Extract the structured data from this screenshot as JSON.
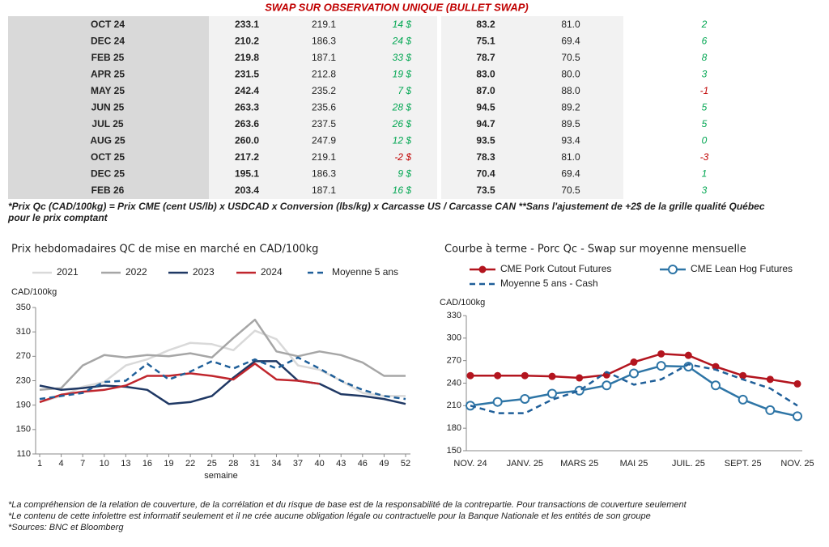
{
  "table": {
    "title": "SWAP SUR OBSERVATION UNIQUE (BULLET SWAP)",
    "rows": [
      [
        "OCT 24",
        "233.1",
        "219.1",
        "14 $",
        "83.2",
        "81.0",
        "2"
      ],
      [
        "DEC 24",
        "210.2",
        "186.3",
        "24 $",
        "75.1",
        "69.4",
        "6"
      ],
      [
        "FEB 25",
        "219.8",
        "187.1",
        "33 $",
        "78.7",
        "70.5",
        "8"
      ],
      [
        "APR 25",
        "231.5",
        "212.8",
        "19 $",
        "83.0",
        "80.0",
        "3"
      ],
      [
        "MAY 25",
        "242.4",
        "235.2",
        "7 $",
        "87.0",
        "88.0",
        "-1"
      ],
      [
        "JUN 25",
        "263.3",
        "235.6",
        "28 $",
        "94.5",
        "89.2",
        "5"
      ],
      [
        "JUL 25",
        "263.6",
        "237.5",
        "26 $",
        "94.7",
        "89.5",
        "5"
      ],
      [
        "AUG 25",
        "260.0",
        "247.9",
        "12 $",
        "93.5",
        "93.4",
        "0"
      ],
      [
        "OCT 25",
        "217.2",
        "219.1",
        "-2 $",
        "78.3",
        "81.0",
        "-3"
      ],
      [
        "DEC 25",
        "195.1",
        "186.3",
        "9 $",
        "70.4",
        "69.4",
        "1"
      ],
      [
        "FEB 26",
        "203.4",
        "187.1",
        "16 $",
        "73.5",
        "70.5",
        "3"
      ]
    ]
  },
  "footnote": [
    "*Prix Qc (CAD/100kg) = Prix CME (cent US/lb) x USDCAD x Conversion (lbs/kg) x Carcasse US / Carcasse CAN **Sans l'ajustement de +2$ de la grille qualité Québec",
    "pour le prix comptant"
  ],
  "chart_data": [
    {
      "type": "line",
      "title": "Prix hebdomadaires QC de mise en marché en CAD/100kg",
      "y_label": "CAD/100kg",
      "x_label": "semaine",
      "x": [
        1,
        4,
        7,
        10,
        13,
        16,
        19,
        22,
        25,
        28,
        31,
        34,
        37,
        40,
        43,
        46,
        49,
        52
      ],
      "xlim": [
        1,
        52
      ],
      "xticks": [
        1,
        4,
        7,
        10,
        13,
        16,
        19,
        22,
        25,
        28,
        31,
        34,
        37,
        40,
        43,
        46,
        49,
        52
      ],
      "ylim": [
        110,
        350
      ],
      "yticks": [
        110,
        150,
        190,
        230,
        270,
        310,
        350
      ],
      "series": [
        {
          "name": "2021",
          "color": "#d9d9d9",
          "dashed": false,
          "values": [
            195,
            205,
            220,
            228,
            255,
            265,
            280,
            292,
            290,
            280,
            312,
            298,
            255,
            248,
            230,
            210,
            205,
            205
          ]
        },
        {
          "name": "2022",
          "color": "#a6a6a6",
          "dashed": false,
          "values": [
            215,
            218,
            255,
            272,
            268,
            272,
            270,
            275,
            268,
            300,
            330,
            278,
            270,
            278,
            272,
            260,
            238,
            238
          ]
        },
        {
          "name": "2023",
          "color": "#1f3864",
          "dashed": false,
          "values": [
            222,
            215,
            218,
            222,
            220,
            215,
            192,
            195,
            205,
            235,
            262,
            262,
            230,
            225,
            208,
            205,
            200,
            192
          ]
        },
        {
          "name": "2024",
          "color": "#c0262d",
          "dashed": false,
          "values": [
            195,
            207,
            212,
            215,
            222,
            238,
            238,
            242,
            238,
            232,
            258,
            232,
            230,
            225,
            null,
            null,
            null,
            null
          ]
        },
        {
          "name": "Moyenne 5 ans",
          "color": "#1f5f99",
          "dashed": true,
          "values": [
            200,
            205,
            210,
            228,
            230,
            258,
            232,
            245,
            262,
            250,
            265,
            250,
            268,
            250,
            230,
            215,
            205,
            200
          ]
        }
      ]
    },
    {
      "type": "line",
      "title": "Courbe à terme - Porc Qc - Swap sur moyenne mensuelle",
      "y_label": "CAD/100kg",
      "categories": [
        "NOV. 24",
        null,
        "JANV. 25",
        null,
        "MARS 25",
        null,
        "MAI 25",
        null,
        "JUIL. 25",
        null,
        "SEPT. 25",
        null,
        "NOV. 25"
      ],
      "ylim": [
        150,
        330
      ],
      "yticks": [
        150,
        180,
        210,
        240,
        270,
        300,
        330
      ],
      "series": [
        {
          "name": "CME Pork Cutout Futures",
          "color": "#b3151f",
          "dashed": false,
          "marker": "filled",
          "values": [
            250,
            250,
            250,
            249,
            247,
            251,
            268,
            279,
            277,
            262,
            250,
            245,
            239
          ]
        },
        {
          "name": "CME Lean Hog Futures",
          "color": "#2e75a6",
          "dashed": false,
          "marker": "open",
          "values": [
            210,
            215,
            219,
            226,
            230,
            237,
            253,
            263,
            262,
            237,
            218,
            204,
            196
          ]
        },
        {
          "name": "Moyenne 5 ans - Cash",
          "color": "#1f5f99",
          "dashed": true,
          "values": [
            210,
            200,
            200,
            218,
            230,
            255,
            238,
            245,
            265,
            258,
            245,
            233,
            210
          ]
        }
      ]
    }
  ],
  "notes": [
    "*La compréhension de la relation de couverture, de la corrélation et du risque de base est de la responsabilité de la contrepartie. Pour transactions de couverture seulement",
    "*Le contenu de cette infolettre est informatif seulement et il ne crée aucune obligation légale ou contractuelle pour la Banque Nationale et les entités de son groupe",
    "*Sources: BNC et Bloomberg"
  ]
}
